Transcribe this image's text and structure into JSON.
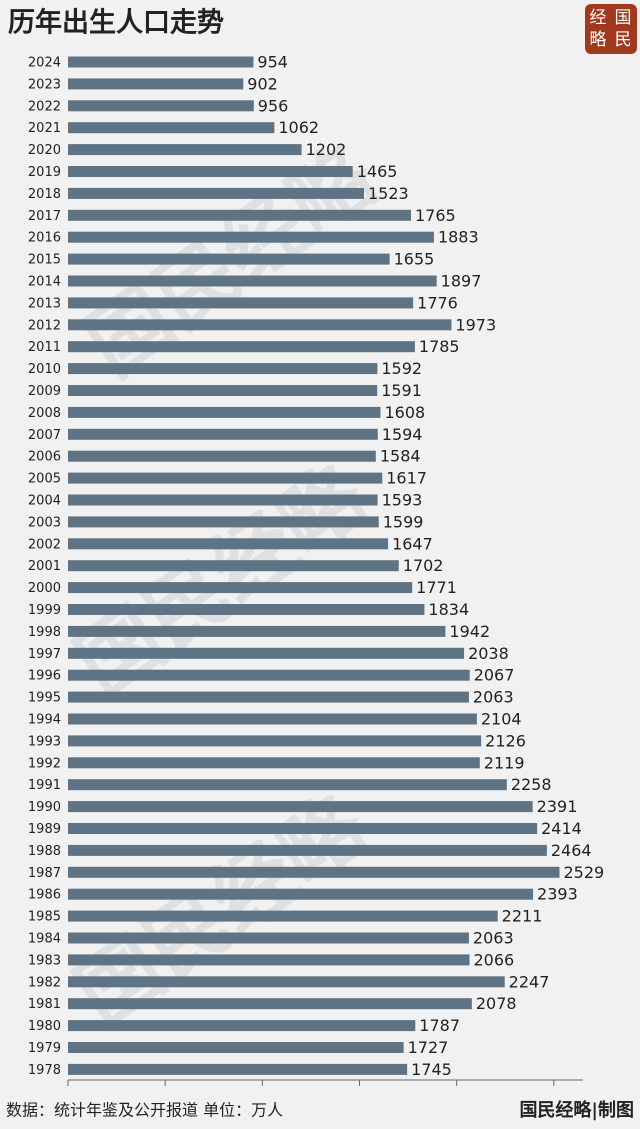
{
  "chart_data": {
    "type": "barh",
    "title": "历年出生人口走势",
    "logo": [
      "经",
      "国",
      "略",
      "民"
    ],
    "watermark": "国民经略",
    "categories": [
      "2024",
      "2023",
      "2022",
      "2021",
      "2020",
      "2019",
      "2018",
      "2017",
      "2016",
      "2015",
      "2014",
      "2013",
      "2012",
      "2011",
      "2010",
      "2009",
      "2008",
      "2007",
      "2006",
      "2005",
      "2004",
      "2003",
      "2002",
      "2001",
      "2000",
      "1999",
      "1998",
      "1997",
      "1996",
      "1995",
      "1994",
      "1993",
      "1992",
      "1991",
      "1990",
      "1989",
      "1988",
      "1987",
      "1986",
      "1985",
      "1984",
      "1983",
      "1982",
      "1981",
      "1980",
      "1979",
      "1978"
    ],
    "values": [
      954,
      902,
      956,
      1062,
      1202,
      1465,
      1523,
      1765,
      1883,
      1655,
      1897,
      1776,
      1973,
      1785,
      1592,
      1591,
      1608,
      1594,
      1584,
      1617,
      1593,
      1599,
      1647,
      1702,
      1771,
      1834,
      1942,
      2038,
      2067,
      2063,
      2104,
      2126,
      2119,
      2258,
      2391,
      2414,
      2464,
      2529,
      2393,
      2211,
      2063,
      2066,
      2247,
      2078,
      1787,
      1727,
      1745
    ],
    "color": "#5e7383",
    "xlim": [
      0,
      2650
    ],
    "xticks": [
      0,
      500,
      1000,
      1500,
      2000,
      2500
    ],
    "source": "数据：统计年鉴及公开报道 单位：万人",
    "credit": "国民经略|制图"
  }
}
